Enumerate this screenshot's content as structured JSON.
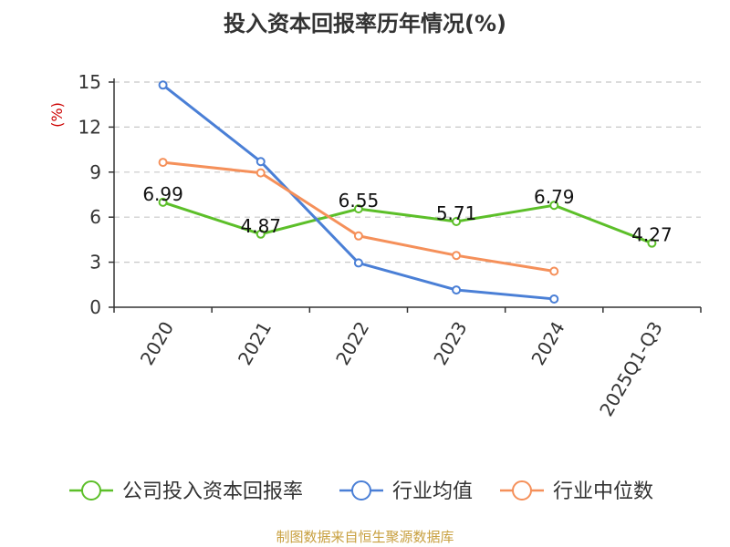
{
  "chart_data": {
    "type": "line",
    "title": "投入资本回报率历年情况(%)",
    "ylabel": "(%)",
    "xlabel": "",
    "categories": [
      "2020",
      "2021",
      "2022",
      "2023",
      "2024",
      "2025Q1-Q3"
    ],
    "ylim": [
      0,
      15
    ],
    "yticks": [
      0,
      3,
      6,
      9,
      12,
      15
    ],
    "grid": "horizontal-dashed",
    "legend_position": "bottom",
    "series": [
      {
        "name": "公司投入资本回报率",
        "color": "#5cbf29",
        "values": [
          6.99,
          4.87,
          6.55,
          5.71,
          6.79,
          4.27
        ],
        "labels": [
          "6.99",
          "4.87",
          "6.55",
          "5.71",
          "6.79",
          "4.27"
        ]
      },
      {
        "name": "行业均值",
        "color": "#4a7fd6",
        "values": [
          14.8,
          9.7,
          2.95,
          1.15,
          0.55,
          null
        ]
      },
      {
        "name": "行业中位数",
        "color": "#f5905a",
        "values": [
          9.65,
          8.95,
          4.75,
          3.45,
          2.4,
          null
        ]
      }
    ]
  },
  "source": "制图数据来自恒生聚源数据库"
}
